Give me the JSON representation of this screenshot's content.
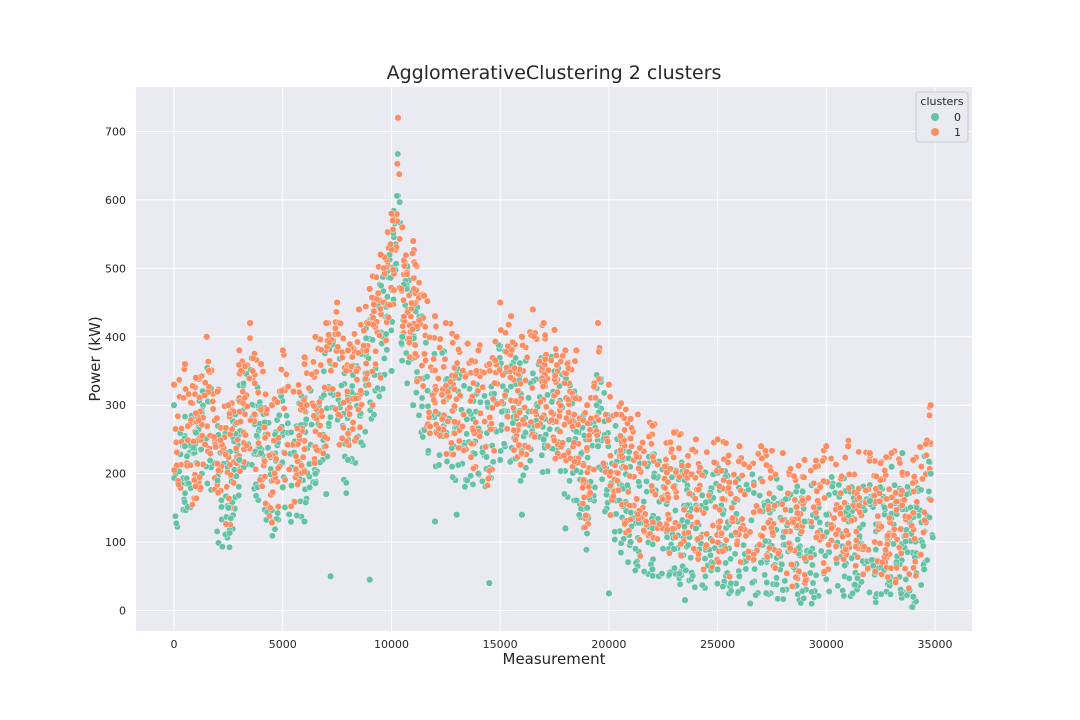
{
  "chart_data": {
    "type": "scatter",
    "title": "AgglomerativeClustering 2 clusters",
    "xlabel": "Measurement",
    "ylabel": "Power (kW)",
    "xlim": [
      -1750,
      36700
    ],
    "ylim": [
      -30,
      765
    ],
    "xticks": [
      0,
      5000,
      10000,
      15000,
      20000,
      25000,
      30000,
      35000
    ],
    "yticks": [
      0,
      100,
      200,
      300,
      400,
      500,
      600,
      700
    ],
    "grid": true,
    "background": "#eaeaf2",
    "legend": {
      "title": "clusters",
      "placement": "top-right",
      "entries": [
        {
          "label": "0",
          "color": "#66c2a5"
        },
        {
          "label": "1",
          "color": "#fc8d62"
        }
      ]
    },
    "series": [
      {
        "name": "0",
        "color": "#66c2a5",
        "x": [
          0,
          500,
          1000,
          2000,
          2500,
          3000,
          4000,
          5000,
          6000,
          6500,
          7000,
          7200,
          8000,
          9000,
          10000,
          10500,
          11000,
          12000,
          13000,
          14000,
          14500,
          15000,
          16000,
          17000,
          18000,
          19000,
          19500,
          20000,
          21000,
          22000,
          23000,
          23500,
          24000,
          25000,
          26000,
          26500,
          27000,
          28000,
          29000,
          30000,
          31000,
          32000,
          33000,
          33500,
          34000,
          34500,
          34800
        ],
        "y": [
          300,
          240,
          260,
          190,
          150,
          220,
          230,
          180,
          130,
          200,
          170,
          50,
          220,
          45,
          350,
          400,
          300,
          130,
          140,
          200,
          40,
          220,
          140,
          250,
          120,
          150,
          240,
          25,
          100,
          60,
          90,
          15,
          120,
          60,
          50,
          10,
          70,
          30,
          130,
          140,
          150,
          160,
          210,
          230,
          20,
          60,
          200
        ]
      },
      {
        "name": "1",
        "color": "#fc8d62",
        "x": [
          0,
          500,
          1000,
          1500,
          2000,
          2500,
          3000,
          3500,
          4000,
          4500,
          5000,
          5500,
          6000,
          6500,
          7000,
          7500,
          8000,
          8500,
          9000,
          9500,
          10000,
          10300,
          10500,
          11000,
          11500,
          12000,
          12500,
          13000,
          13500,
          14000,
          14500,
          15000,
          15500,
          16000,
          16500,
          17000,
          17500,
          18000,
          18500,
          19000,
          19500,
          20000,
          21000,
          22000,
          23000,
          24000,
          25000,
          26000,
          27000,
          28000,
          29000,
          30000,
          31000,
          32000,
          33000,
          34000,
          34800
        ],
        "y": [
          330,
          360,
          340,
          400,
          320,
          300,
          380,
          420,
          360,
          300,
          380,
          320,
          370,
          400,
          420,
          450,
          380,
          440,
          470,
          520,
          580,
          720,
          560,
          540,
          460,
          430,
          420,
          400,
          390,
          380,
          360,
          450,
          430,
          400,
          440,
          420,
          410,
          380,
          380,
          300,
          420,
          330,
          280,
          270,
          260,
          250,
          250,
          240,
          240,
          230,
          220,
          240,
          240,
          230,
          230,
          220,
          300
        ]
      }
    ]
  }
}
